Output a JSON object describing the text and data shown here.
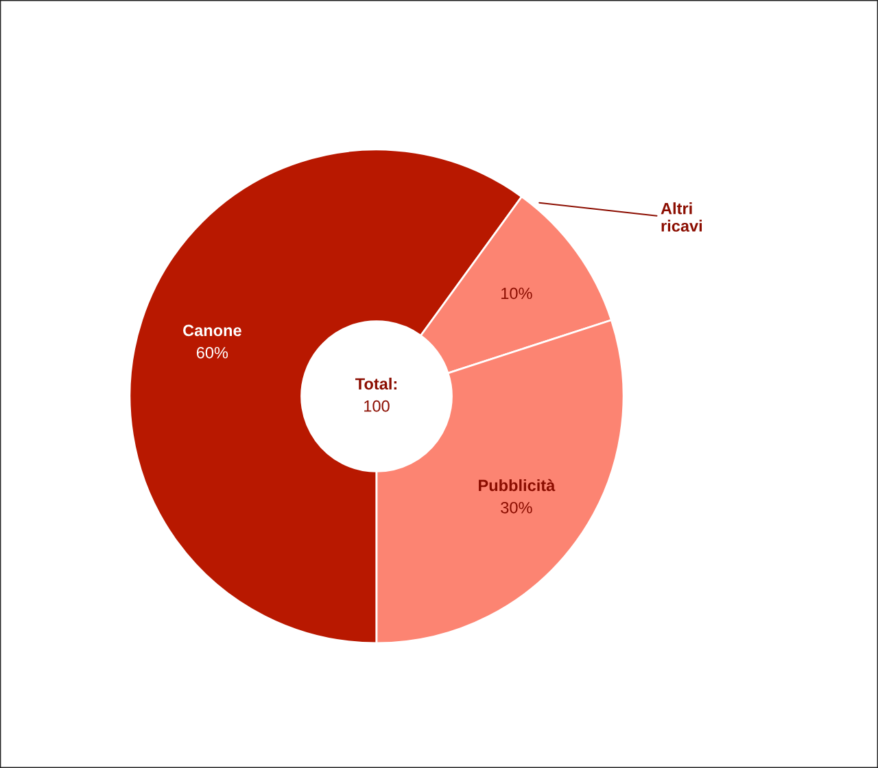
{
  "chart_data": {
    "type": "donut",
    "categories": [
      "Canone",
      "Altri ricavi",
      "Pubblicità"
    ],
    "values": [
      60,
      10,
      30
    ],
    "colors": [
      "#b81800",
      "#fc8472",
      "#fc8472"
    ],
    "value_labels": [
      "60%",
      "10%",
      "30%"
    ],
    "annotations": [
      "Total:",
      "100"
    ],
    "legend": false
  }
}
